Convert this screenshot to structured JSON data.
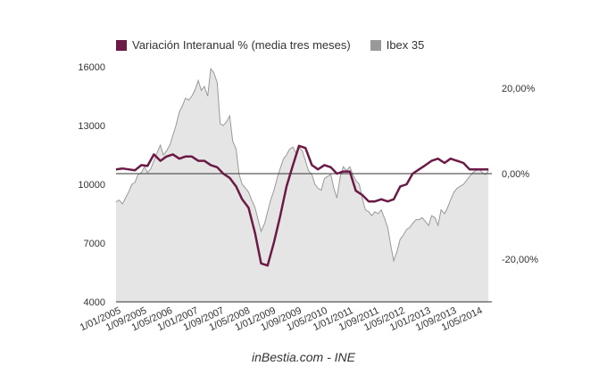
{
  "legend": {
    "items": [
      {
        "label": "Variación Interanual % (media tres meses)",
        "color": "#6b1a45"
      },
      {
        "label": "Ibex 35",
        "color": "#999999"
      }
    ]
  },
  "source": "inBestia.com - INE",
  "chart_data": {
    "type": "line",
    "title": "",
    "categories": [
      "1/01/2005",
      "1/09/2005",
      "1/05/2006",
      "1/01/2007",
      "1/09/2007",
      "1/05/2008",
      "1/01/2009",
      "1/09/2009",
      "1/05/2010",
      "1/01/2011",
      "1/09/2011",
      "1/05/2012",
      "1/01/2013",
      "1/09/2013",
      "1/05/2014"
    ],
    "left_axis": {
      "ticks": [
        "16000",
        "13000",
        "10000",
        "7000",
        "4000"
      ],
      "range": [
        4000,
        16000
      ]
    },
    "right_axis": {
      "ticks": [
        "20,00%",
        "0,00%",
        "-20,00%"
      ],
      "range": [
        -30,
        25
      ]
    },
    "grid": false,
    "legend_position": "top",
    "series": [
      {
        "name": "Variación Interanual % (media tres meses)",
        "axis": "right",
        "color": "#6b1a45",
        "type": "line",
        "x": [
          2005.0,
          2005.17,
          2005.33,
          2005.5,
          2005.67,
          2005.83,
          2006.0,
          2006.17,
          2006.33,
          2006.5,
          2006.67,
          2006.83,
          2007.0,
          2007.17,
          2007.33,
          2007.5,
          2007.67,
          2007.83,
          2008.0,
          2008.17,
          2008.33,
          2008.5,
          2008.67,
          2008.83,
          2009.0,
          2009.17,
          2009.33,
          2009.5,
          2009.67,
          2009.83,
          2010.0,
          2010.17,
          2010.33,
          2010.5,
          2010.67,
          2010.83,
          2011.0,
          2011.17,
          2011.33,
          2011.5,
          2011.67,
          2011.83,
          2012.0,
          2012.17,
          2012.33,
          2012.5,
          2012.67,
          2012.83,
          2013.0,
          2013.17,
          2013.33,
          2013.5,
          2013.67,
          2013.83,
          2014.0,
          2014.17,
          2014.33,
          2014.5,
          2014.67,
          2014.83
        ],
        "y": [
          1,
          1.2,
          1,
          0.8,
          2,
          1.8,
          4.5,
          3,
          4,
          4.5,
          3.5,
          4,
          4,
          3,
          3,
          2,
          1.5,
          0,
          -1,
          -3,
          -6,
          -8,
          -14,
          -21,
          -21.5,
          -16,
          -10,
          -3,
          2,
          6.5,
          6,
          2,
          1,
          2,
          1.5,
          0,
          0.5,
          0.5,
          -4,
          -5,
          -6.5,
          -6.5,
          -6,
          -6.5,
          -6,
          -3,
          -2.5,
          0,
          1,
          2,
          3,
          3.5,
          2.5,
          3.5,
          3,
          2.5,
          1,
          1,
          1,
          1
        ]
      },
      {
        "name": "Ibex 35",
        "axis": "left",
        "color": "#999999",
        "fill": "#e5e5e5",
        "type": "area",
        "x": [
          2005.0,
          2005.08,
          2005.17,
          2005.25,
          2005.33,
          2005.42,
          2005.5,
          2005.58,
          2005.67,
          2005.75,
          2005.83,
          2005.92,
          2006.0,
          2006.08,
          2006.17,
          2006.25,
          2006.33,
          2006.42,
          2006.5,
          2006.58,
          2006.67,
          2006.75,
          2006.83,
          2006.92,
          2007.0,
          2007.08,
          2007.17,
          2007.25,
          2007.33,
          2007.42,
          2007.5,
          2007.58,
          2007.67,
          2007.75,
          2007.83,
          2007.92,
          2008.0,
          2008.08,
          2008.17,
          2008.25,
          2008.33,
          2008.42,
          2008.5,
          2008.58,
          2008.67,
          2008.75,
          2008.83,
          2008.92,
          2009.0,
          2009.08,
          2009.17,
          2009.25,
          2009.33,
          2009.42,
          2009.5,
          2009.58,
          2009.67,
          2009.75,
          2009.83,
          2009.92,
          2010.0,
          2010.08,
          2010.17,
          2010.25,
          2010.33,
          2010.42,
          2010.5,
          2010.58,
          2010.67,
          2010.75,
          2010.83,
          2010.92,
          2011.0,
          2011.08,
          2011.17,
          2011.25,
          2011.33,
          2011.42,
          2011.5,
          2011.58,
          2011.67,
          2011.75,
          2011.83,
          2011.92,
          2012.0,
          2012.08,
          2012.17,
          2012.25,
          2012.33,
          2012.42,
          2012.5,
          2012.58,
          2012.67,
          2012.75,
          2012.83,
          2012.92,
          2013.0,
          2013.08,
          2013.17,
          2013.25,
          2013.33,
          2013.42,
          2013.5,
          2013.58,
          2013.67,
          2013.75,
          2013.83,
          2013.92,
          2014.0,
          2014.08,
          2014.17,
          2014.25,
          2014.33,
          2014.42,
          2014.5,
          2014.58,
          2014.67,
          2014.75,
          2014.83
        ],
        "y": [
          9100,
          9200,
          9000,
          9300,
          9600,
          10000,
          10100,
          10500,
          10600,
          10900,
          10600,
          10800,
          11200,
          11600,
          12000,
          11500,
          11700,
          12000,
          12500,
          13000,
          13700,
          14000,
          14400,
          14300,
          14500,
          14800,
          15300,
          14800,
          15000,
          14500,
          15900,
          15700,
          15200,
          13100,
          13000,
          13200,
          13500,
          12200,
          11800,
          10500,
          10000,
          9800,
          9600,
          9200,
          8800,
          8200,
          7600,
          8000,
          8600,
          9200,
          9700,
          10300,
          10800,
          11300,
          11500,
          11800,
          11900,
          11600,
          11900,
          11700,
          11200,
          10700,
          10500,
          10000,
          9800,
          9700,
          10300,
          10400,
          10500,
          9800,
          9300,
          10400,
          10900,
          10700,
          10900,
          10500,
          10200,
          10000,
          9300,
          8700,
          8600,
          8400,
          8600,
          8500,
          8700,
          8300,
          7800,
          6900,
          6100,
          6600,
          7200,
          7400,
          7700,
          7800,
          8000,
          8200,
          8200,
          8300,
          8100,
          7900,
          8400,
          8300,
          7900,
          8700,
          8500,
          8800,
          9200,
          9600,
          9800,
          9900,
          10000,
          10200,
          10400,
          10600,
          10700,
          10800,
          10600,
          10500,
          10700
        ]
      }
    ]
  }
}
